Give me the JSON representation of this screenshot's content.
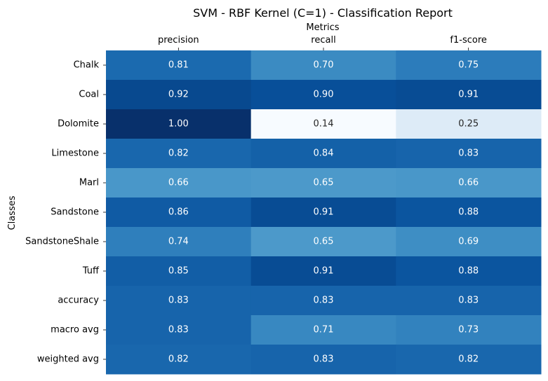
{
  "chart_data": {
    "type": "heatmap",
    "title": "SVM - RBF Kernel (C=1) - Classification Report",
    "xlabel": "Metrics",
    "ylabel": "Classes",
    "x_categories": [
      "precision",
      "recall",
      "f1-score"
    ],
    "y_categories": [
      "Chalk",
      "Coal",
      "Dolomite",
      "Limestone",
      "Marl",
      "Sandstone",
      "SandstoneShale",
      "Tuff",
      "accuracy",
      "macro avg",
      "weighted avg"
    ],
    "values": [
      [
        0.81,
        0.7,
        0.75
      ],
      [
        0.92,
        0.9,
        0.91
      ],
      [
        1.0,
        0.14,
        0.25
      ],
      [
        0.82,
        0.84,
        0.83
      ],
      [
        0.66,
        0.65,
        0.66
      ],
      [
        0.86,
        0.91,
        0.88
      ],
      [
        0.74,
        0.65,
        0.69
      ],
      [
        0.85,
        0.91,
        0.88
      ],
      [
        0.83,
        0.83,
        0.83
      ],
      [
        0.83,
        0.71,
        0.73
      ],
      [
        0.82,
        0.83,
        0.82
      ]
    ],
    "colormap": "Blues",
    "value_range": [
      0.14,
      1.0
    ],
    "x_axis_position": "top",
    "colorbar": false,
    "grid": false
  }
}
